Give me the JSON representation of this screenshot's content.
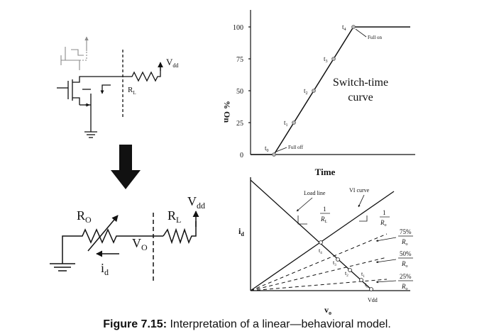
{
  "circuit_top": {
    "vdd_label": "V",
    "vdd_sub": "dd",
    "rl_label": "R",
    "rl_sub": "L"
  },
  "circuit_bottom": {
    "ro_label": "R",
    "ro_sub": "O",
    "rl_label": "R",
    "rl_sub": "L",
    "vdd_label": "V",
    "vdd_sub": "dd",
    "vo_label": "V",
    "vo_sub": "O",
    "id_label": "i",
    "id_sub": "d"
  },
  "switch_time_chart": {
    "ylabel": "% On",
    "xlabel": "Time",
    "curve_label_line1": "Switch-time",
    "curve_label_line2": "curve",
    "y_ticks": [
      "100",
      "75",
      "50",
      "25",
      "0"
    ],
    "points": [
      {
        "label": "t",
        "sub": "0"
      },
      {
        "label": "t",
        "sub": "1"
      },
      {
        "label": "t",
        "sub": "2"
      },
      {
        "label": "t",
        "sub": "3"
      },
      {
        "label": "t",
        "sub": "4"
      }
    ],
    "full_off": "Full off",
    "full_on": "Full on"
  },
  "vi_chart": {
    "ylabel": "i",
    "ylabel_sub": "d",
    "xlabel": "v",
    "xlabel_sub": "o",
    "load_line_label": "Load line",
    "vi_curve_label": "VI curve",
    "vdd_label": "Vdd",
    "slope_rl_num": "1",
    "slope_rl_den": "R",
    "slope_rl_den_sub": "L",
    "slope_ro_num": "1",
    "slope_ro_den": "R",
    "slope_ro_den_sub": "o",
    "pct_75": "75%",
    "pct_50": "50%",
    "pct_25": "25%",
    "ro_den": "R",
    "ro_den_sub": "o",
    "t_labels": [
      {
        "label": "t",
        "sub": "4"
      },
      {
        "label": "t",
        "sub": "3"
      },
      {
        "label": "t",
        "sub": "2"
      },
      {
        "label": "t",
        "sub": "1"
      },
      {
        "label": "t",
        "sub": "0"
      }
    ]
  },
  "caption": {
    "label": "Figure 7.15:",
    "text": " Interpretation of a linear—behavioral model."
  },
  "colors": {
    "ink": "#111111",
    "faded": "#8a8a8a"
  }
}
